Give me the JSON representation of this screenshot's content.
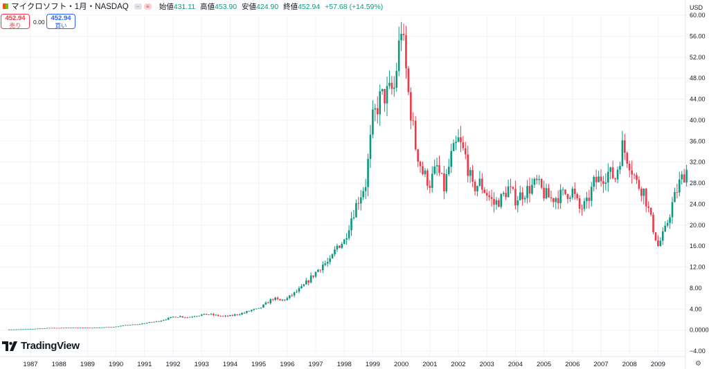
{
  "header": {
    "symbol": "マイクロソフト・1月・NASDAQ",
    "toggle_icons": [
      "minus-icon",
      "menu-icon"
    ],
    "ohlc": {
      "open_label": "始値",
      "open": "431.11",
      "high_label": "高値",
      "high": "453.90",
      "low_label": "安値",
      "low": "424.90",
      "close_label": "終値",
      "close": "452.94",
      "change": "+57.68 (+14.59%)"
    }
  },
  "trade": {
    "sell_price": "452.94",
    "sell_label": "売り",
    "spread": "0.00",
    "buy_price": "452.94",
    "buy_label": "買い"
  },
  "axis": {
    "currency": "USD"
  },
  "branding": {
    "logo_text": "TradingView"
  },
  "colors": {
    "up": "#089981",
    "down": "#f23645",
    "grid": "#f0f3fa"
  },
  "chart_data": {
    "type": "candlestick",
    "interval": "monthly",
    "y_ticks": [
      "60.00",
      "56.00",
      "52.00",
      "48.00",
      "44.00",
      "40.00",
      "36.00",
      "32.00",
      "28.00",
      "24.00",
      "20.00",
      "16.00",
      "12.00",
      "8.00",
      "4.00",
      "0.0000",
      "−4.00"
    ],
    "ylim": [
      -4,
      60
    ],
    "x_ticks": [
      "1987",
      "1988",
      "1989",
      "1990",
      "1991",
      "1992",
      "1993",
      "1994",
      "1995",
      "1996",
      "1997",
      "1998",
      "1999",
      "2000",
      "2001",
      "2002",
      "2003",
      "2004",
      "2005",
      "2006",
      "2007",
      "2008",
      "2009"
    ],
    "xlim": [
      1986.0,
      2010.0
    ],
    "closes_quarterly": [
      [
        1986.25,
        0.1
      ],
      [
        1986.5,
        0.12
      ],
      [
        1986.75,
        0.14
      ],
      [
        1987.0,
        0.2
      ],
      [
        1987.25,
        0.28
      ],
      [
        1987.5,
        0.35
      ],
      [
        1987.75,
        0.42
      ],
      [
        1988.0,
        0.4
      ],
      [
        1988.25,
        0.42
      ],
      [
        1988.5,
        0.45
      ],
      [
        1988.75,
        0.44
      ],
      [
        1989.0,
        0.42
      ],
      [
        1989.25,
        0.45
      ],
      [
        1989.5,
        0.5
      ],
      [
        1989.75,
        0.55
      ],
      [
        1990.0,
        0.65
      ],
      [
        1990.25,
        0.85
      ],
      [
        1990.5,
        1.0
      ],
      [
        1990.75,
        1.05
      ],
      [
        1991.0,
        1.3
      ],
      [
        1991.25,
        1.5
      ],
      [
        1991.5,
        1.7
      ],
      [
        1991.75,
        2.1
      ],
      [
        1992.0,
        2.5
      ],
      [
        1992.25,
        2.6
      ],
      [
        1992.5,
        2.4
      ],
      [
        1992.75,
        2.7
      ],
      [
        1993.0,
        2.9
      ],
      [
        1993.25,
        3.0
      ],
      [
        1993.5,
        2.8
      ],
      [
        1993.75,
        2.6
      ],
      [
        1994.0,
        2.7
      ],
      [
        1994.25,
        3.0
      ],
      [
        1994.5,
        3.3
      ],
      [
        1994.75,
        3.8
      ],
      [
        1995.0,
        4.0
      ],
      [
        1995.25,
        5.0
      ],
      [
        1995.5,
        6.0
      ],
      [
        1995.75,
        5.6
      ],
      [
        1996.0,
        6.0
      ],
      [
        1996.25,
        7.0
      ],
      [
        1996.5,
        8.0
      ],
      [
        1996.75,
        9.5
      ],
      [
        1997.0,
        11.0
      ],
      [
        1997.25,
        12.5
      ],
      [
        1997.5,
        13.0
      ],
      [
        1997.75,
        16.0
      ],
      [
        1998.0,
        17.0
      ],
      [
        1998.25,
        21.5
      ],
      [
        1998.5,
        25.0
      ],
      [
        1998.75,
        28.0
      ],
      [
        1999.0,
        40.0
      ],
      [
        1999.25,
        44.0
      ],
      [
        1999.5,
        45.0
      ],
      [
        1999.75,
        46.0
      ],
      [
        2000.0,
        58.0
      ],
      [
        2000.25,
        45.0
      ],
      [
        2000.5,
        35.0
      ],
      [
        2000.75,
        30.0
      ],
      [
        2001.0,
        28.0
      ],
      [
        2001.25,
        31.0
      ],
      [
        2001.5,
        27.0
      ],
      [
        2001.75,
        33.0
      ],
      [
        2002.0,
        36.0
      ],
      [
        2002.25,
        33.0
      ],
      [
        2002.5,
        27.0
      ],
      [
        2002.75,
        28.0
      ],
      [
        2003.0,
        26.0
      ],
      [
        2003.25,
        24.0
      ],
      [
        2003.5,
        25.0
      ],
      [
        2003.75,
        27.0
      ],
      [
        2004.0,
        25.0
      ],
      [
        2004.25,
        26.0
      ],
      [
        2004.5,
        27.0
      ],
      [
        2004.75,
        28.0
      ],
      [
        2005.0,
        26.0
      ],
      [
        2005.25,
        25.0
      ],
      [
        2005.5,
        25.5
      ],
      [
        2005.75,
        26.0
      ],
      [
        2006.0,
        26.5
      ],
      [
        2006.25,
        23.0
      ],
      [
        2006.5,
        24.0
      ],
      [
        2006.75,
        28.0
      ],
      [
        2007.0,
        29.0
      ],
      [
        2007.25,
        30.0
      ],
      [
        2007.5,
        29.0
      ],
      [
        2007.75,
        35.0
      ],
      [
        2008.0,
        32.0
      ],
      [
        2008.25,
        28.0
      ],
      [
        2008.5,
        26.5
      ],
      [
        2008.75,
        21.0
      ],
      [
        2009.0,
        16.0
      ],
      [
        2009.25,
        19.0
      ],
      [
        2009.5,
        24.0
      ],
      [
        2009.75,
        28.0
      ],
      [
        2010.0,
        30.5
      ]
    ]
  }
}
